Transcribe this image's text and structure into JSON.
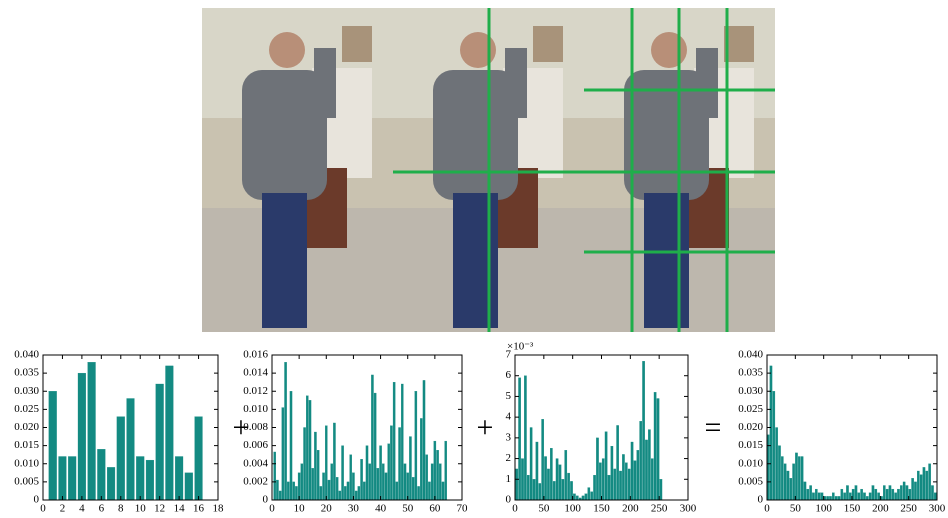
{
  "operators": [
    "+",
    "+",
    "="
  ],
  "chart_data": [
    {
      "type": "bar",
      "color": "#138a82",
      "x": [
        1,
        2,
        3,
        4,
        5,
        6,
        7,
        8,
        9,
        10,
        11,
        12,
        13,
        14,
        15,
        16
      ],
      "values": [
        0.03,
        0.012,
        0.012,
        0.035,
        0.038,
        0.014,
        0.009,
        0.023,
        0.028,
        0.012,
        0.011,
        0.032,
        0.037,
        0.012,
        0.0075,
        0.023
      ],
      "xlim": [
        0,
        18
      ],
      "xticks": [
        0,
        2,
        4,
        6,
        8,
        10,
        12,
        14,
        16,
        18
      ],
      "ylim": [
        0,
        0.04
      ],
      "yticks": [
        0,
        0.005,
        {
          "value": 0.01,
          "label": "0.010"
        },
        0.015,
        {
          "value": 0.02,
          "label": "0.020"
        },
        0.025,
        {
          "value": 0.03,
          "label": "0.030"
        },
        0.035,
        {
          "value": 0.04,
          "label": "0.040"
        }
      ]
    },
    {
      "type": "bar",
      "color": "#138a82",
      "x": [
        1,
        2,
        3,
        4,
        5,
        6,
        7,
        8,
        9,
        10,
        11,
        12,
        13,
        14,
        15,
        16,
        17,
        18,
        19,
        20,
        21,
        22,
        23,
        24,
        25,
        26,
        27,
        28,
        29,
        30,
        31,
        32,
        33,
        34,
        35,
        36,
        37,
        38,
        39,
        40,
        41,
        42,
        43,
        44,
        45,
        46,
        47,
        48,
        49,
        50,
        51,
        52,
        53,
        54,
        55,
        56,
        57,
        58,
        59,
        60,
        61,
        62,
        63,
        64
      ],
      "values": [
        0.0053,
        0.0022,
        0.001,
        0.0102,
        0.0152,
        0.002,
        0.012,
        0.002,
        0.0015,
        0.003,
        0.004,
        0.008,
        0.0115,
        0.011,
        0.0035,
        0.0075,
        0.0055,
        0.0015,
        0.003,
        0.0082,
        0.0022,
        0.004,
        0.0085,
        0.0025,
        0.001,
        0.006,
        0.0015,
        0.002,
        0.005,
        0.003,
        0.001,
        0.0015,
        0.0045,
        0.002,
        0.006,
        0.004,
        0.0138,
        0.0118,
        0.0035,
        0.006,
        0.004,
        0.003,
        0.0062,
        0.0082,
        0.013,
        0.002,
        0.008,
        0.0128,
        0.004,
        0.003,
        0.007,
        0.0025,
        0.012,
        0.0015,
        0.009,
        0.0132,
        0.005,
        0.002,
        0.004,
        0.0065,
        0.0055,
        0.004,
        0.002,
        0.0065
      ],
      "xlim": [
        0,
        70
      ],
      "xticks": [
        0,
        10,
        20,
        30,
        40,
        50,
        60,
        70
      ],
      "ylim": [
        0,
        0.016
      ],
      "yticks": [
        0,
        0.002,
        0.004,
        0.006,
        0.008,
        {
          "value": 0.01,
          "label": "0.010"
        },
        0.012,
        0.014,
        0.016
      ]
    },
    {
      "type": "bar",
      "color": "#138a82",
      "annotation": "×10⁻³",
      "x": [
        3,
        8,
        13,
        18,
        23,
        28,
        33,
        38,
        43,
        48,
        53,
        58,
        63,
        68,
        73,
        78,
        83,
        88,
        93,
        98,
        103,
        108,
        113,
        118,
        123,
        128,
        133,
        138,
        143,
        148,
        153,
        158,
        163,
        168,
        173,
        178,
        183,
        188,
        193,
        198,
        203,
        208,
        213,
        218,
        223,
        228,
        233,
        238,
        243,
        248,
        253
      ],
      "values": [
        1.5,
        5.9,
        2.0,
        6.0,
        1.2,
        3.5,
        1.0,
        2.8,
        0.8,
        3.9,
        2.1,
        1.5,
        2.5,
        0.9,
        2.0,
        1.7,
        1.0,
        2.4,
        1.3,
        0.9,
        0.3,
        0.2,
        0.1,
        0.2,
        0.3,
        0.6,
        0.4,
        1.2,
        3.0,
        1.8,
        2.0,
        3.3,
        1.2,
        2.6,
        1.5,
        3.6,
        1.4,
        2.2,
        1.8,
        1.5,
        2.8,
        1.9,
        2.4,
        3.8,
        6.7,
        2.9,
        3.4,
        2.0,
        5.2,
        4.9,
        1.0
      ],
      "xlim": [
        0,
        300
      ],
      "xticks": [
        0,
        50,
        100,
        150,
        200,
        250,
        300
      ],
      "ylim": [
        0,
        7
      ],
      "yticks": [
        0,
        1,
        2,
        3,
        4,
        5,
        6,
        7
      ]
    },
    {
      "type": "bar",
      "color": "#138a82",
      "x": [
        2,
        7,
        12,
        17,
        22,
        27,
        32,
        37,
        42,
        47,
        52,
        57,
        62,
        67,
        72,
        77,
        82,
        87,
        92,
        97,
        102,
        107,
        112,
        117,
        122,
        127,
        132,
        137,
        142,
        147,
        152,
        157,
        162,
        167,
        172,
        177,
        182,
        187,
        192,
        197,
        202,
        207,
        212,
        217,
        222,
        227,
        232,
        237,
        242,
        247,
        252,
        257,
        262,
        267,
        272,
        277,
        282,
        287,
        292,
        297
      ],
      "values": [
        0.018,
        0.037,
        0.03,
        0.02,
        0.015,
        0.012,
        0.01,
        0.008,
        0.006,
        0.01,
        0.013,
        0.012,
        0.012,
        0.005,
        0.003,
        0.004,
        0.002,
        0.003,
        0.002,
        0.002,
        0.001,
        0.001,
        0.001,
        0.002,
        0.001,
        0.001,
        0.003,
        0.002,
        0.004,
        0.002,
        0.003,
        0.004,
        0.002,
        0.003,
        0.002,
        0.001,
        0.002,
        0.004,
        0.003,
        0.002,
        0.001,
        0.004,
        0.003,
        0.004,
        0.003,
        0.002,
        0.003,
        0.004,
        0.005,
        0.004,
        0.003,
        0.006,
        0.005,
        0.008,
        0.007,
        0.009,
        0.008,
        0.01,
        0.004,
        0.002
      ],
      "xlim": [
        0,
        300
      ],
      "xticks": [
        0,
        50,
        100,
        150,
        200,
        250,
        300
      ],
      "ylim": [
        0,
        0.04
      ],
      "yticks": [
        0,
        0.005,
        {
          "value": 0.01,
          "label": "0.010"
        },
        0.015,
        {
          "value": 0.02,
          "label": "0.020"
        },
        0.025,
        {
          "value": 0.03,
          "label": "0.030"
        },
        0.035,
        {
          "value": 0.04,
          "label": "0.040"
        }
      ]
    }
  ]
}
